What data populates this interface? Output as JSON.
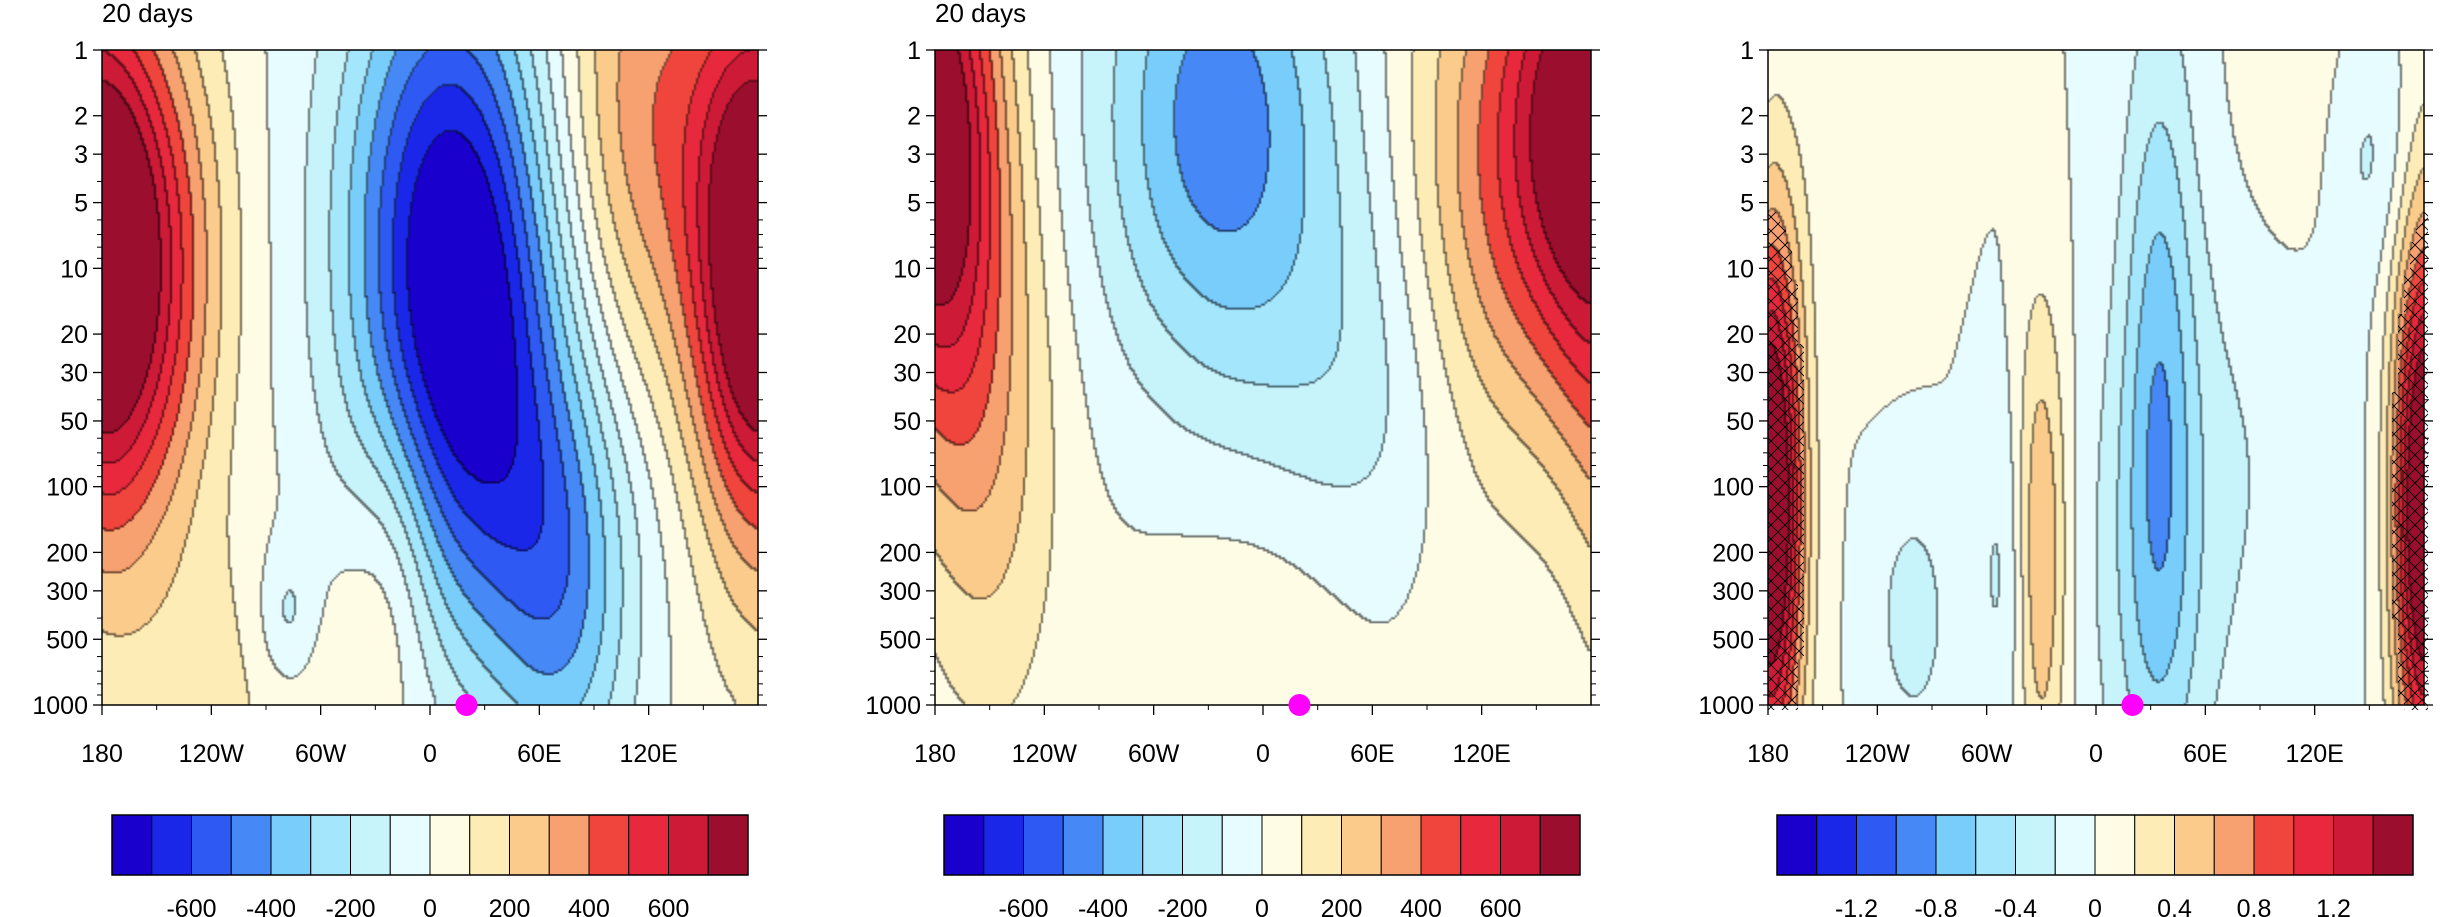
{
  "chart_data": [
    {
      "type": "heatmap",
      "title": "20 days",
      "xlabel": "",
      "ylabel": "",
      "x_ticks": [
        "180",
        "120W",
        "60W",
        "0",
        "60E",
        "120E"
      ],
      "x_tick_values": [
        -180,
        -120,
        -60,
        0,
        60,
        120
      ],
      "xlim": [
        -180,
        180
      ],
      "y_scale": "log",
      "y_ticks": [
        "1",
        "2",
        "3",
        "5",
        "10",
        "20",
        "30",
        "50",
        "100",
        "200",
        "300",
        "500",
        "1000"
      ],
      "y_tick_values": [
        1,
        2,
        3,
        5,
        10,
        20,
        30,
        50,
        100,
        200,
        300,
        500,
        1000
      ],
      "ylim": [
        1000,
        1
      ],
      "marker": {
        "lon": 20,
        "level": 1000,
        "color": "#ff00ff"
      },
      "features": [
        {
          "lon": -158,
          "level": 10,
          "value": 600,
          "sx": 30,
          "sy": 0.85
        },
        {
          "lon": 175,
          "level": 10,
          "value": 540,
          "sx": 22,
          "sy": 0.85
        },
        {
          "lon": 120,
          "level": 2,
          "value": 380,
          "sx": 38,
          "sy": 0.9
        },
        {
          "lon": 10,
          "level": 6,
          "value": -680,
          "sx": 40,
          "sy": 0.95
        },
        {
          "lon": 30,
          "level": 60,
          "value": -380,
          "sx": 38,
          "sy": 0.85
        },
        {
          "lon": 75,
          "level": 300,
          "value": -340,
          "sx": 28,
          "sy": 0.7
        },
        {
          "lon": -78,
          "level": 400,
          "value": -180,
          "sx": 12,
          "sy": 0.25
        },
        {
          "lon": -20,
          "level": 200,
          "value": 160,
          "sx": 18,
          "sy": 0.5
        },
        {
          "lon": -100,
          "level": 800,
          "value": 110,
          "sx": 70,
          "sy": 0.5
        }
      ],
      "colorbar": {
        "labels": [
          "-600",
          "-400",
          "-200",
          "0",
          "200",
          "400",
          "600"
        ],
        "label_values": [
          -600,
          -400,
          -200,
          0,
          200,
          400,
          600
        ],
        "levels": [
          -700,
          -600,
          -500,
          -400,
          -300,
          -200,
          -100,
          0,
          100,
          200,
          300,
          400,
          500,
          600,
          700
        ]
      }
    },
    {
      "type": "heatmap",
      "title": "20 days",
      "xlabel": "",
      "ylabel": "",
      "x_ticks": [
        "180",
        "120W",
        "60W",
        "0",
        "60E",
        "120E"
      ],
      "x_tick_values": [
        -180,
        -120,
        -60,
        0,
        60,
        120
      ],
      "xlim": [
        -180,
        180
      ],
      "y_scale": "log",
      "y_ticks": [
        "1",
        "2",
        "3",
        "5",
        "10",
        "20",
        "30",
        "50",
        "100",
        "200",
        "300",
        "500",
        "1000"
      ],
      "y_tick_values": [
        1,
        2,
        3,
        5,
        10,
        20,
        30,
        50,
        100,
        200,
        300,
        500,
        1000
      ],
      "ylim": [
        1000,
        1
      ],
      "marker": {
        "lon": 20,
        "level": 1000,
        "color": "#ff00ff"
      },
      "features": [
        {
          "lon": -170,
          "level": 5,
          "value": 320,
          "sx": 22,
          "sy": 1.0
        },
        {
          "lon": -145,
          "level": 60,
          "value": 200,
          "sx": 26,
          "sy": 1.0
        },
        {
          "lon": 170,
          "level": 2,
          "value": 600,
          "sx": 28,
          "sy": 0.8
        },
        {
          "lon": 120,
          "level": 5,
          "value": 340,
          "sx": 35,
          "sy": 1.0
        },
        {
          "lon": -25,
          "level": 2,
          "value": -450,
          "sx": 45,
          "sy": 0.85
        },
        {
          "lon": 60,
          "level": 80,
          "value": -220,
          "sx": 50,
          "sy": 1.0
        },
        {
          "lon": 40,
          "level": 350,
          "value": 170,
          "sx": 60,
          "sy": 0.6
        }
      ],
      "colorbar": {
        "labels": [
          "-600",
          "-400",
          "-200",
          "0",
          "200",
          "400",
          "600"
        ],
        "label_values": [
          -600,
          -400,
          -200,
          0,
          200,
          400,
          600
        ],
        "levels": [
          -700,
          -600,
          -500,
          -400,
          -300,
          -200,
          -100,
          0,
          100,
          200,
          300,
          400,
          500,
          600,
          700
        ]
      }
    },
    {
      "type": "heatmap",
      "title": "",
      "xlabel": "",
      "ylabel": "",
      "x_ticks": [
        "180",
        "120W",
        "60W",
        "0",
        "60E",
        "120E"
      ],
      "x_tick_values": [
        -180,
        -120,
        -60,
        0,
        60,
        120
      ],
      "xlim": [
        -180,
        180
      ],
      "y_scale": "log",
      "y_ticks": [
        "1",
        "2",
        "3",
        "5",
        "10",
        "20",
        "30",
        "50",
        "100",
        "200",
        "300",
        "500",
        "1000"
      ],
      "y_tick_values": [
        1,
        2,
        3,
        5,
        10,
        20,
        30,
        50,
        100,
        200,
        300,
        500,
        1000
      ],
      "ylim": [
        1000,
        1
      ],
      "marker": {
        "lon": 20,
        "level": 1000,
        "color": "#ff00ff"
      },
      "hatched": true,
      "features": [
        {
          "lon": -175,
          "level": 120,
          "value": 1.05,
          "sx": 12,
          "sy": 0.9
        },
        {
          "lon": 178,
          "level": 120,
          "value": 1.0,
          "sx": 12,
          "sy": 0.9
        },
        {
          "lon": -30,
          "level": 200,
          "value": 0.65,
          "sx": 10,
          "sy": 0.8
        },
        {
          "lon": 35,
          "level": 30,
          "value": -0.55,
          "sx": 14,
          "sy": 1.2
        },
        {
          "lon": 30,
          "level": 300,
          "value": -0.3,
          "sx": 25,
          "sy": 0.9
        },
        {
          "lon": -100,
          "level": 400,
          "value": -0.3,
          "sx": 15,
          "sy": 0.4
        },
        {
          "lon": -50,
          "level": 250,
          "value": -0.25,
          "sx": 12,
          "sy": 0.6
        },
        {
          "lon": 80,
          "level": 70,
          "value": -0.18,
          "sx": 45,
          "sy": 1.0
        },
        {
          "lon": 110,
          "level": 2,
          "value": 0.18,
          "sx": 25,
          "sy": 0.6
        },
        {
          "lon": -120,
          "level": 3,
          "value": 0.15,
          "sx": 25,
          "sy": 0.5
        },
        {
          "lon": 150,
          "level": 3,
          "value": -0.25,
          "sx": 18,
          "sy": 0.4
        }
      ],
      "colorbar": {
        "labels": [
          "-1.2",
          "-0.8",
          "-0.4",
          "0",
          "0.4",
          "0.8",
          "1.2"
        ],
        "label_values": [
          -1.2,
          -0.8,
          -0.4,
          0,
          0.4,
          0.8,
          1.2
        ],
        "levels": [
          -1.4,
          -1.2,
          -1.0,
          -0.8,
          -0.6,
          -0.4,
          -0.2,
          0,
          0.2,
          0.4,
          0.6,
          0.8,
          1.0,
          1.2,
          1.4
        ]
      }
    }
  ],
  "colors": {
    "palette": [
      "#1a00cc",
      "#1b27e8",
      "#2e59f2",
      "#4688f5",
      "#79cdfb",
      "#a4e6fb",
      "#c7f3fb",
      "#e6fcfe",
      "#fffce6",
      "#fdecb5",
      "#fbcb8c",
      "#f8a170",
      "#f0453c",
      "#e8283c",
      "#cc1a37",
      "#9b0e2d"
    ],
    "marker": "#ff00ff"
  }
}
